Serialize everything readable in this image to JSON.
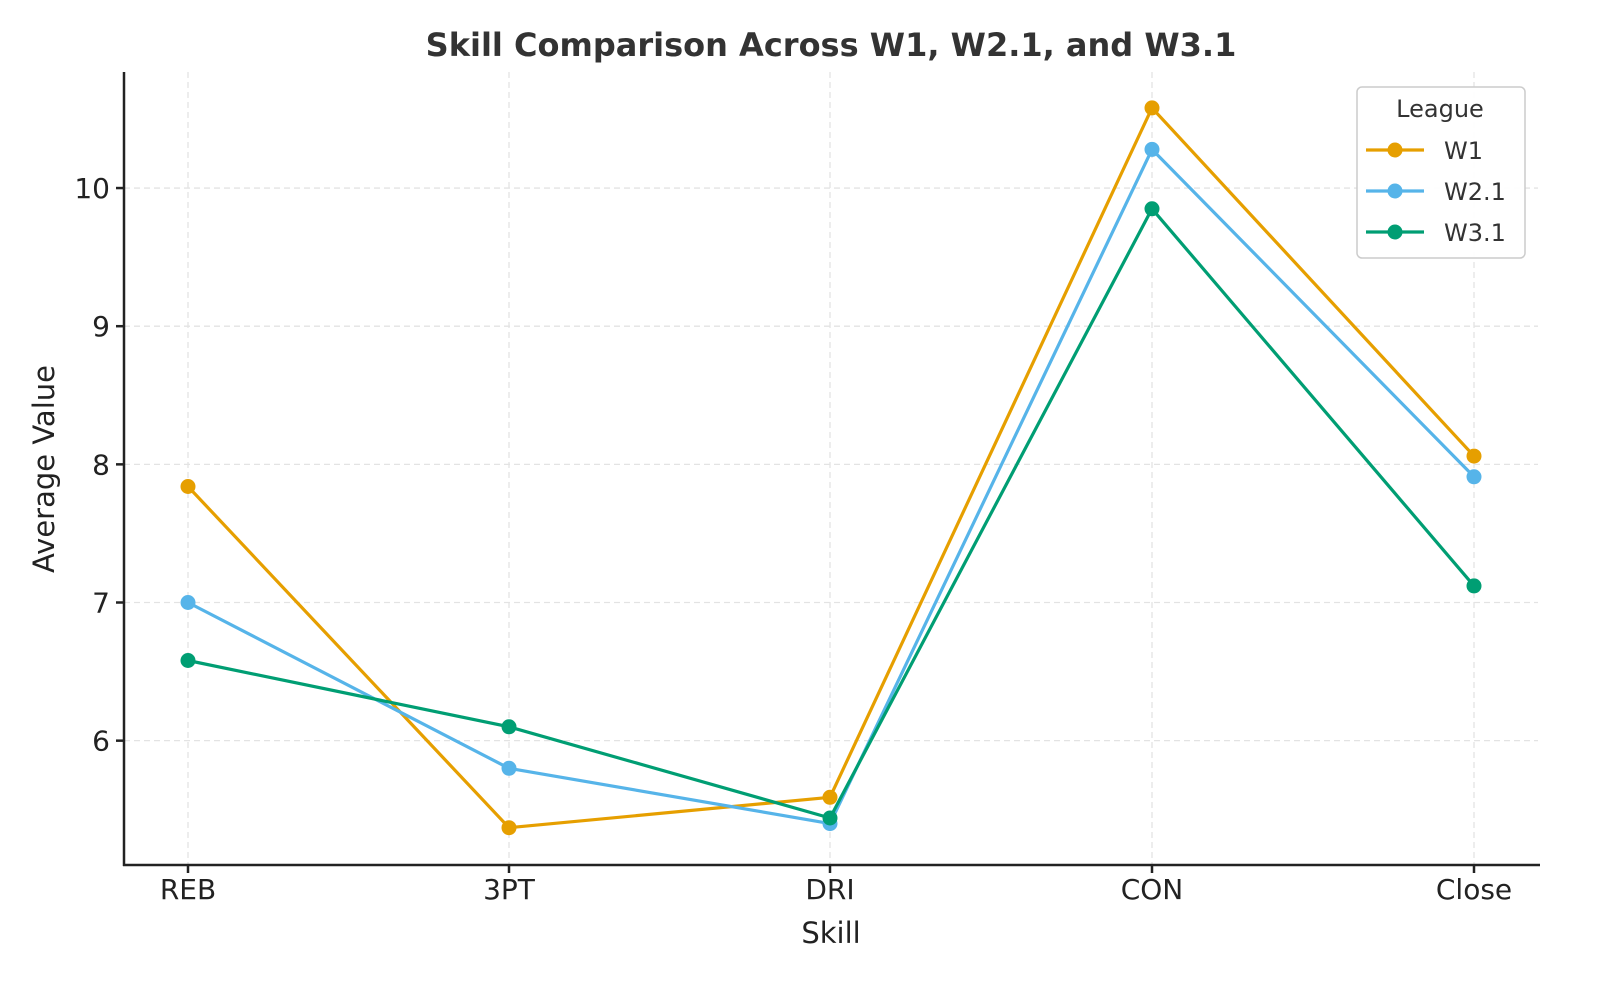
{
  "chart_data": {
    "type": "line",
    "title": "Skill Comparison Across W1, W2.1, and W3.1",
    "xlabel": "Skill",
    "ylabel": "Average Value",
    "categories": [
      "REB",
      "3PT",
      "DRI",
      "CON",
      "Close"
    ],
    "ylim": [
      5.1,
      10.84
    ],
    "yticks": [
      6,
      7,
      8,
      9,
      10
    ],
    "ytick_labels": [
      "6",
      "7",
      "8",
      "9",
      "10"
    ],
    "grid": true,
    "legend": {
      "title": "League",
      "placement": "top-right"
    },
    "series": [
      {
        "name": "W1",
        "color": "#E69F00",
        "values": [
          7.84,
          5.37,
          5.59,
          10.58,
          8.06
        ]
      },
      {
        "name": "W2.1",
        "color": "#56B4E9",
        "values": [
          7.0,
          5.8,
          5.4,
          10.28,
          7.91
        ]
      },
      {
        "name": "W3.1",
        "color": "#009E73",
        "values": [
          6.58,
          6.1,
          5.44,
          9.85,
          7.12
        ]
      }
    ]
  }
}
